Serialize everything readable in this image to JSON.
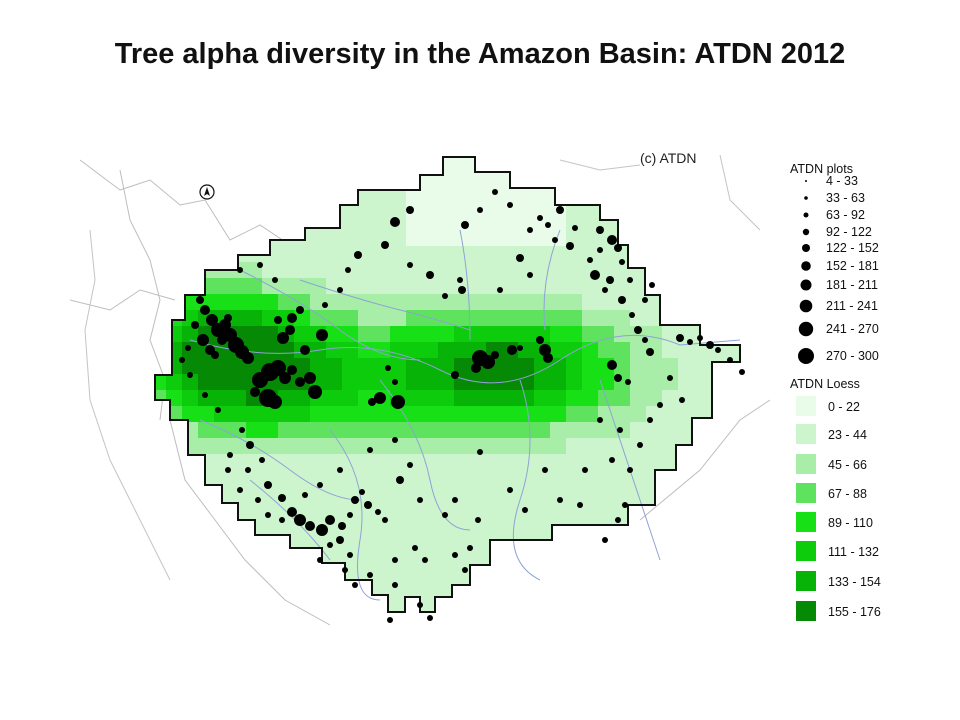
{
  "title": "Tree alpha diversity in the Amazon Basin: ATDN 2012",
  "panel_label": "(c) ATDN",
  "north_arrow_icon": "north-arrow-icon",
  "legend": {
    "plots_title": "ATDN plots",
    "plot_classes": [
      "4 - 33",
      "33 - 63",
      "63 - 92",
      "92 - 122",
      "122 - 152",
      "152 - 181",
      "181 - 211",
      "211 - 241",
      "241 - 270",
      "270 - 300"
    ],
    "loess_title": "ATDN Loess",
    "loess_classes": [
      {
        "label": "0 - 22",
        "color": "#e9fbe9"
      },
      {
        "label": "23 - 44",
        "color": "#cdf5cd"
      },
      {
        "label": "45 - 66",
        "color": "#a8eea8"
      },
      {
        "label": "67 - 88",
        "color": "#5fe35f"
      },
      {
        "label": "89 - 110",
        "color": "#17e017"
      },
      {
        "label": "111 - 132",
        "color": "#0ccc0c"
      },
      {
        "label": "133 - 154",
        "color": "#07b307"
      },
      {
        "label": "155 - 176",
        "color": "#068a06"
      }
    ]
  },
  "colors": {
    "dots": "#000000",
    "outline": "#111111",
    "rivers": "#8ea2d6",
    "borders": "#bdbdbd"
  }
}
